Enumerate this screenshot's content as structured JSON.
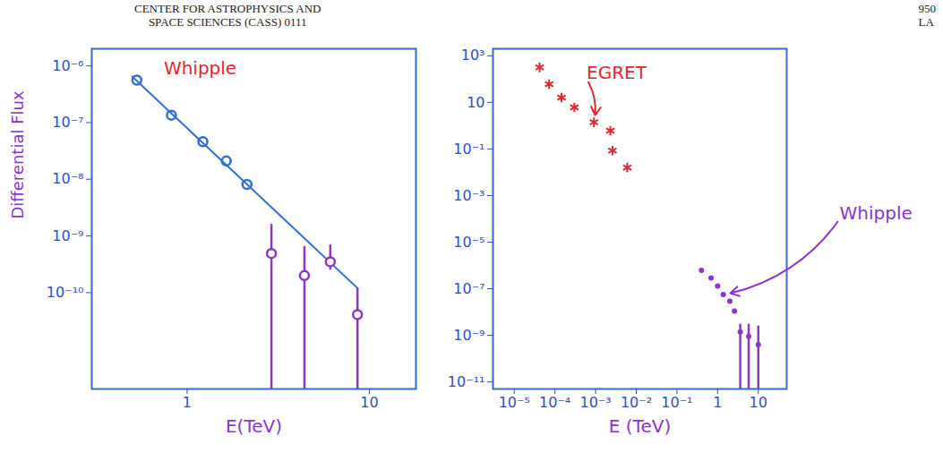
{
  "header": {
    "left_lines": [
      "CENTER FOR ASTROPHYSICS AND",
      "SPACE SCIENCES (CASS) 0111"
    ],
    "right_lines": [
      "950",
      "LA"
    ]
  },
  "chart_data": [
    {
      "type": "scatter",
      "title": "Whipple",
      "x_label": "E(TeV)",
      "y_label": "Differential Flux",
      "log": true,
      "grid": false,
      "xlim": [
        0.3,
        18
      ],
      "ylim": [
        2e-12,
        2e-06
      ],
      "xticks": [
        1,
        10
      ],
      "yticks": [
        {
          "value": 1e-06,
          "label": "10⁻⁶"
        },
        {
          "value": 1e-07,
          "label": "10⁻⁷"
        },
        {
          "value": 1e-08,
          "label": "10⁻⁸"
        },
        {
          "value": 1e-09,
          "label": "10⁻⁹"
        },
        {
          "value": 1e-10,
          "label": "10⁻¹⁰"
        }
      ],
      "series": [
        {
          "type": "scatter",
          "color": "#2f6fd6",
          "marker": "open_circle",
          "x": [
            0.53,
            0.82,
            1.22,
            1.64,
            2.13
          ],
          "values": [
            5.6e-07,
            1.35e-07,
            4.6e-08,
            2.1e-08,
            8.1e-09
          ]
        },
        {
          "type": "line",
          "color": "#2f6fd6",
          "line_style": "solid",
          "x": [
            0.5,
            8.6
          ],
          "values": [
            6.5e-07,
            1.2e-10
          ]
        },
        {
          "type": "scatter",
          "color": "#8b35c9",
          "marker": "open_circle",
          "x": [
            2.9,
            4.4,
            6.1,
            8.6
          ],
          "values": [
            4.9e-10,
            2e-10,
            3.5e-10,
            4.1e-11
          ],
          "y_high": [
            1.6e-09,
            6.5e-10,
            6.9e-10,
            1.2e-10
          ],
          "y_low": [
            null,
            null,
            2.5e-10,
            null
          ]
        }
      ]
    },
    {
      "type": "scatter",
      "x_label": "E (TeV)",
      "log": true,
      "grid": false,
      "xlim": [
        3e-06,
        50
      ],
      "ylim": [
        5e-12,
        2000
      ],
      "xticks": [
        {
          "value": 1e-05,
          "label": "10⁻⁵"
        },
        {
          "value": 0.0001,
          "label": "10⁻⁴"
        },
        {
          "value": 0.001,
          "label": "10⁻³"
        },
        {
          "value": 0.01,
          "label": "10⁻²"
        },
        {
          "value": 0.1,
          "label": "10⁻¹"
        },
        1,
        10
      ],
      "yticks": [
        {
          "value": 1000,
          "label": "10³"
        },
        10,
        {
          "value": 0.1,
          "label": "10⁻¹"
        },
        {
          "value": 0.001,
          "label": "10⁻³"
        },
        {
          "value": 1e-05,
          "label": "10⁻⁵"
        },
        {
          "value": 1e-07,
          "label": "10⁻⁷"
        },
        {
          "value": 1e-09,
          "label": "10⁻⁹"
        },
        {
          "value": 1e-11,
          "label": "10⁻¹¹"
        }
      ],
      "series": [
        {
          "name": "EGRET",
          "type": "scatter",
          "color": "#e0282e",
          "marker": "asterisk",
          "x": [
            4.2e-05,
            7.2e-05,
            0.000145,
            0.0003,
            0.00091,
            0.0023,
            0.0026,
            0.006
          ],
          "values": [
            316,
            61,
            16,
            6.1,
            1.4,
            0.61,
            0.085,
            0.016
          ]
        },
        {
          "name": "Whipple",
          "type": "scatter",
          "color": "#8b35c9",
          "marker": "dot",
          "x": [
            0.4,
            0.69,
            1.0,
            1.38,
            2.0,
            2.6
          ],
          "values": [
            6.2e-07,
            2.9e-07,
            1.3e-07,
            5.6e-08,
            2.9e-08,
            1.1e-08
          ]
        },
        {
          "type": "scatter",
          "color": "#8b35c9",
          "marker": "dot",
          "x": [
            3.6,
            5.8,
            10
          ],
          "values": [
            1.4e-09,
            9e-10,
            4e-10
          ],
          "y_high": [
            3e-09,
            3e-09,
            2.5e-09
          ],
          "y_low": [
            null,
            null,
            null
          ]
        }
      ],
      "annotations": [
        {
          "text": "EGRET",
          "color": "#e0282e",
          "x": 0.0006,
          "y": 100
        },
        {
          "text": "Whipple",
          "color": "#8b35c9",
          "x": 1000,
          "y": 0.0001
        }
      ]
    }
  ]
}
